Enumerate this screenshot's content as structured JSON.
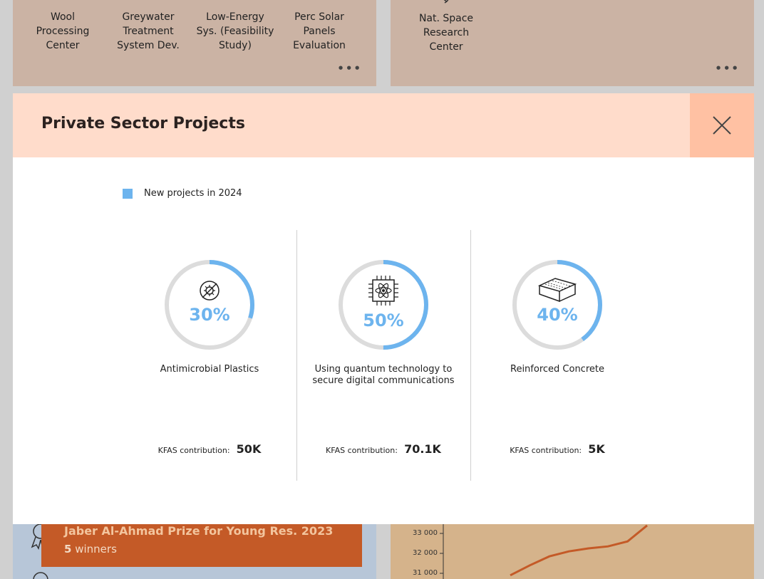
{
  "top_left_card": {
    "projects": [
      "Wool\nProcessing\nCenter",
      "Greywater\nTreatment\nSystem Dev.",
      "Low-Energy\nSys. (Feasibility\nStudy)",
      "Perc Solar\nPanels\nEvaluation"
    ],
    "more": "•••"
  },
  "top_right_card": {
    "project": "Nat. Space\nResearch\nCenter",
    "more": "•••"
  },
  "prize": {
    "title": "Jaber Al-Ahmad Prize for Young Res. 2023",
    "count": "5",
    "count_label": "winners"
  },
  "bg_chart": {
    "y_ticks": [
      "33 000",
      "32 000",
      "31 000"
    ],
    "values": [
      30900,
      31400,
      31850,
      32100,
      32250,
      32350,
      32600,
      33400
    ],
    "line_color": "#c45a27"
  },
  "modal": {
    "title": "Private Sector Projects",
    "legend": {
      "label": "New projects in 2024",
      "color": "#6db4ee"
    },
    "kpis": [
      {
        "icon": "antimicrobial-icon",
        "percent": 30,
        "percent_label": "30%",
        "label": "Antimicrobial Plastics",
        "contrib_label": "KFAS contribution:",
        "contrib_value": "50K"
      },
      {
        "icon": "quantum-chip-icon",
        "percent": 50,
        "percent_label": "50%",
        "label": "Using quantum technology to secure digital communications",
        "contrib_label": "KFAS contribution:",
        "contrib_value": "70.1K"
      },
      {
        "icon": "concrete-block-icon",
        "percent": 40,
        "percent_label": "40%",
        "label": "Reinforced Concrete",
        "contrib_label": "KFAS contribution:",
        "contrib_value": "5K"
      }
    ]
  }
}
